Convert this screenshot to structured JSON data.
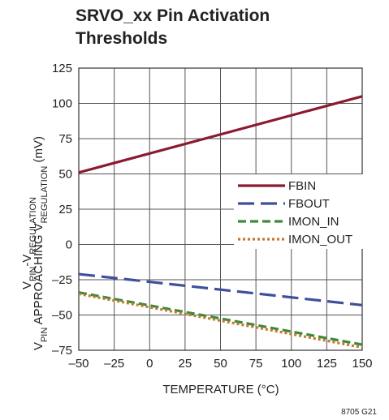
{
  "chart_data": {
    "type": "line",
    "title": [
      "SRVO_xx Pin Activation",
      "Thresholds"
    ],
    "xlabel": "TEMPERATURE (°C)",
    "ylabel_line1": {
      "parts": [
        [
          "V",
          ""
        ],
        [
          "PIN",
          "sub"
        ],
        [
          "-V",
          ""
        ],
        [
          "REGULATION",
          "sub"
        ]
      ]
    },
    "ylabel_line2": {
      "parts": [
        [
          "V",
          ""
        ],
        [
          "PIN",
          "sub"
        ],
        [
          " APPROACHING V",
          ""
        ],
        [
          "REGULATION",
          "sub"
        ],
        [
          " (mV)",
          ""
        ]
      ]
    },
    "xlim": [
      -50,
      150
    ],
    "ylim": [
      -75,
      125
    ],
    "xticks": [
      -50,
      -25,
      0,
      25,
      50,
      75,
      100,
      125,
      150
    ],
    "yticks": [
      125,
      100,
      75,
      50,
      25,
      0,
      -25,
      -50,
      -75
    ],
    "xtick_labels": [
      "–50",
      "–25",
      "0",
      "25",
      "50",
      "75",
      "100",
      "125",
      "150"
    ],
    "ytick_labels": [
      "125",
      "100",
      "75",
      "50",
      "25",
      "0",
      "–25",
      "–50",
      "–75"
    ],
    "grid": true,
    "legend_position": "right",
    "series": [
      {
        "name": "FBIN",
        "color": "#8b1a2e",
        "dash": "solid",
        "x": [
          -50,
          150
        ],
        "y": [
          51,
          105
        ]
      },
      {
        "name": "FBOUT",
        "color": "#3f4f9b",
        "dash": "long-dash",
        "x": [
          -50,
          150
        ],
        "y": [
          -21,
          -43
        ]
      },
      {
        "name": "IMON_IN",
        "color": "#3d8a3a",
        "dash": "dash",
        "x": [
          -50,
          150
        ],
        "y": [
          -34,
          -71
        ]
      },
      {
        "name": "IMON_OUT",
        "color": "#c07a30",
        "dash": "dot",
        "x": [
          -50,
          150
        ],
        "y": [
          -35,
          -73
        ]
      }
    ],
    "figure_code": "8705 G21"
  }
}
